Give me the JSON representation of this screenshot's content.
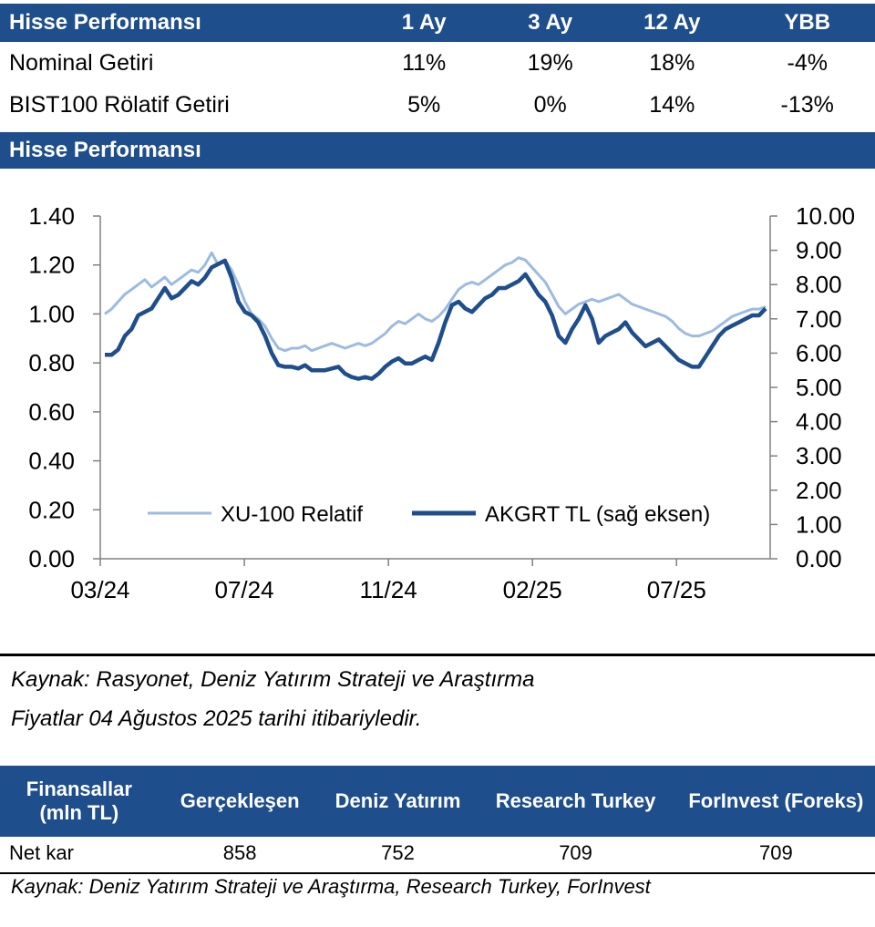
{
  "perf_table": {
    "headers": [
      "Hisse Performansı",
      "1 Ay",
      "3 Ay",
      "12 Ay",
      "YBB"
    ],
    "rows": [
      [
        "Nominal Getiri",
        "11%",
        "19%",
        "18%",
        "-4%"
      ],
      [
        "BIST100 Rölatif Getiri",
        "5%",
        "0%",
        "14%",
        "-13%"
      ]
    ]
  },
  "section_title": "Hisse Performansı",
  "chart_data": {
    "type": "line",
    "x_tick_labels": [
      "03/24",
      "07/24",
      "11/24",
      "02/25",
      "07/25"
    ],
    "left_axis": {
      "range": [
        0,
        1.4
      ],
      "ticks": [
        "0.00",
        "0.20",
        "0.40",
        "0.60",
        "0.80",
        "1.00",
        "1.20",
        "1.40"
      ]
    },
    "right_axis": {
      "range": [
        0,
        10
      ],
      "ticks": [
        "0.00",
        "1.00",
        "2.00",
        "3.00",
        "4.00",
        "5.00",
        "6.00",
        "7.00",
        "8.00",
        "9.00",
        "10.00"
      ]
    },
    "legend_position": "bottom-center",
    "series": [
      {
        "name": "XU-100 Relatif",
        "axis": "left",
        "color": "#9dbbe0",
        "values": [
          1.0,
          1.02,
          1.05,
          1.08,
          1.1,
          1.12,
          1.14,
          1.11,
          1.13,
          1.15,
          1.12,
          1.14,
          1.16,
          1.18,
          1.17,
          1.2,
          1.25,
          1.2,
          1.22,
          1.18,
          1.12,
          1.05,
          1.0,
          0.98,
          0.95,
          0.9,
          0.86,
          0.85,
          0.86,
          0.86,
          0.87,
          0.85,
          0.86,
          0.87,
          0.88,
          0.87,
          0.86,
          0.87,
          0.88,
          0.87,
          0.88,
          0.9,
          0.92,
          0.95,
          0.97,
          0.96,
          0.98,
          1.0,
          0.98,
          0.97,
          0.99,
          1.02,
          1.06,
          1.1,
          1.12,
          1.13,
          1.12,
          1.14,
          1.16,
          1.18,
          1.2,
          1.21,
          1.23,
          1.22,
          1.19,
          1.16,
          1.13,
          1.08,
          1.03,
          1.0,
          1.02,
          1.04,
          1.05,
          1.06,
          1.05,
          1.06,
          1.07,
          1.08,
          1.06,
          1.04,
          1.03,
          1.02,
          1.01,
          1.0,
          0.99,
          0.97,
          0.94,
          0.92,
          0.91,
          0.91,
          0.92,
          0.93,
          0.95,
          0.97,
          0.99,
          1.0,
          1.01,
          1.02,
          1.02,
          1.03
        ]
      },
      {
        "name": "AKGRT TL (sağ eksen)",
        "axis": "right",
        "color": "#1f4e8c",
        "values": [
          5.95,
          5.95,
          6.1,
          6.5,
          6.7,
          7.1,
          7.2,
          7.3,
          7.6,
          7.9,
          7.6,
          7.7,
          7.9,
          8.1,
          8.0,
          8.2,
          8.5,
          8.6,
          8.7,
          8.2,
          7.5,
          7.2,
          7.1,
          6.9,
          6.5,
          6.0,
          5.65,
          5.6,
          5.6,
          5.55,
          5.65,
          5.5,
          5.5,
          5.5,
          5.55,
          5.6,
          5.4,
          5.3,
          5.25,
          5.3,
          5.25,
          5.4,
          5.6,
          5.75,
          5.85,
          5.7,
          5.7,
          5.8,
          5.9,
          5.8,
          6.3,
          6.9,
          7.4,
          7.5,
          7.3,
          7.2,
          7.4,
          7.6,
          7.7,
          7.9,
          7.9,
          8.0,
          8.1,
          8.3,
          8.0,
          7.7,
          7.5,
          7.1,
          6.5,
          6.3,
          6.7,
          7.0,
          7.4,
          7.0,
          6.3,
          6.5,
          6.6,
          6.7,
          6.9,
          6.6,
          6.4,
          6.2,
          6.3,
          6.4,
          6.2,
          6.0,
          5.8,
          5.7,
          5.6,
          5.6,
          5.9,
          6.2,
          6.5,
          6.7,
          6.8,
          6.9,
          7.0,
          7.1,
          7.1,
          7.3
        ]
      }
    ]
  },
  "notes": [
    "Kaynak: Rasyonet, Deniz Yatırım Strateji ve Araştırma",
    "Fiyatlar 04 Ağustos 2025 tarihi itibariyledir."
  ],
  "fin_table": {
    "header_first_line1": "Finansallar",
    "header_first_line2": "(mln TL)",
    "headers": [
      "Gerçekleşen",
      "Deniz Yatırım",
      "Research Turkey",
      "ForInvest (Foreks)"
    ],
    "row": [
      "Net kar",
      "858",
      "752",
      "709",
      "709"
    ]
  },
  "fin_source": "Kaynak: Deniz Yatırım Strateji ve Araştırma, Research Turkey, ForInvest"
}
